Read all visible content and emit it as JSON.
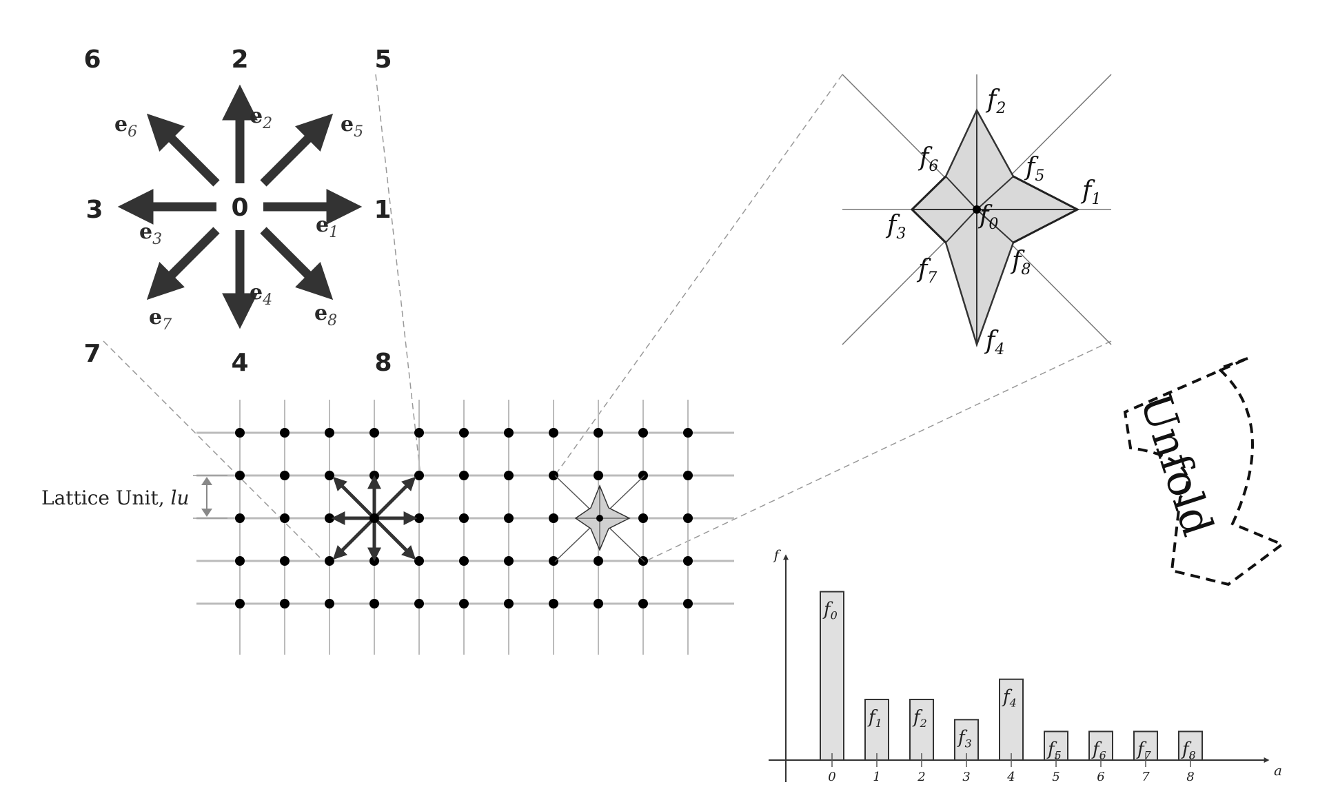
{
  "compass": {
    "center_label": "0",
    "direction_numbers": [
      "1",
      "2",
      "3",
      "4",
      "5",
      "6",
      "7",
      "8"
    ],
    "vector_labels": [
      {
        "base": "e",
        "sub": "1"
      },
      {
        "base": "e",
        "sub": "2"
      },
      {
        "base": "e",
        "sub": "3"
      },
      {
        "base": "e",
        "sub": "4"
      },
      {
        "base": "e",
        "sub": "5"
      },
      {
        "base": "e",
        "sub": "6"
      },
      {
        "base": "e",
        "sub": "7"
      },
      {
        "base": "e",
        "sub": "8"
      }
    ]
  },
  "distribution_star": {
    "labels": [
      {
        "base": "f",
        "sub": "0"
      },
      {
        "base": "f",
        "sub": "1"
      },
      {
        "base": "f",
        "sub": "2"
      },
      {
        "base": "f",
        "sub": "3"
      },
      {
        "base": "f",
        "sub": "4"
      },
      {
        "base": "f",
        "sub": "5"
      },
      {
        "base": "f",
        "sub": "6"
      },
      {
        "base": "f",
        "sub": "7"
      },
      {
        "base": "f",
        "sub": "8"
      }
    ]
  },
  "lattice": {
    "label_text": "Lattice Unit, ",
    "label_unit": "lu"
  },
  "unfold_text": "Unfold",
  "chart_data": {
    "type": "bar",
    "categories": [
      "0",
      "1",
      "2",
      "3",
      "4",
      "5",
      "6",
      "7",
      "8"
    ],
    "values": [
      1.0,
      0.36,
      0.36,
      0.24,
      0.48,
      0.17,
      0.17,
      0.17,
      0.17
    ],
    "bar_labels": [
      {
        "base": "f",
        "sub": "0"
      },
      {
        "base": "f",
        "sub": "1"
      },
      {
        "base": "f",
        "sub": "2"
      },
      {
        "base": "f",
        "sub": "3"
      },
      {
        "base": "f",
        "sub": "4"
      },
      {
        "base": "f",
        "sub": "5"
      },
      {
        "base": "f",
        "sub": "6"
      },
      {
        "base": "f",
        "sub": "7"
      },
      {
        "base": "f",
        "sub": "8"
      }
    ],
    "xlabel": "a",
    "ylabel": "f",
    "ylim": [
      0,
      1.1
    ],
    "bar_color": "#e0e0e0",
    "grid": false
  },
  "colors": {
    "arrow": "#333333",
    "grid_line": "#bbbbbb",
    "node": "#000000",
    "star_fill": "#d9d9d9",
    "dashed": "#999999"
  }
}
